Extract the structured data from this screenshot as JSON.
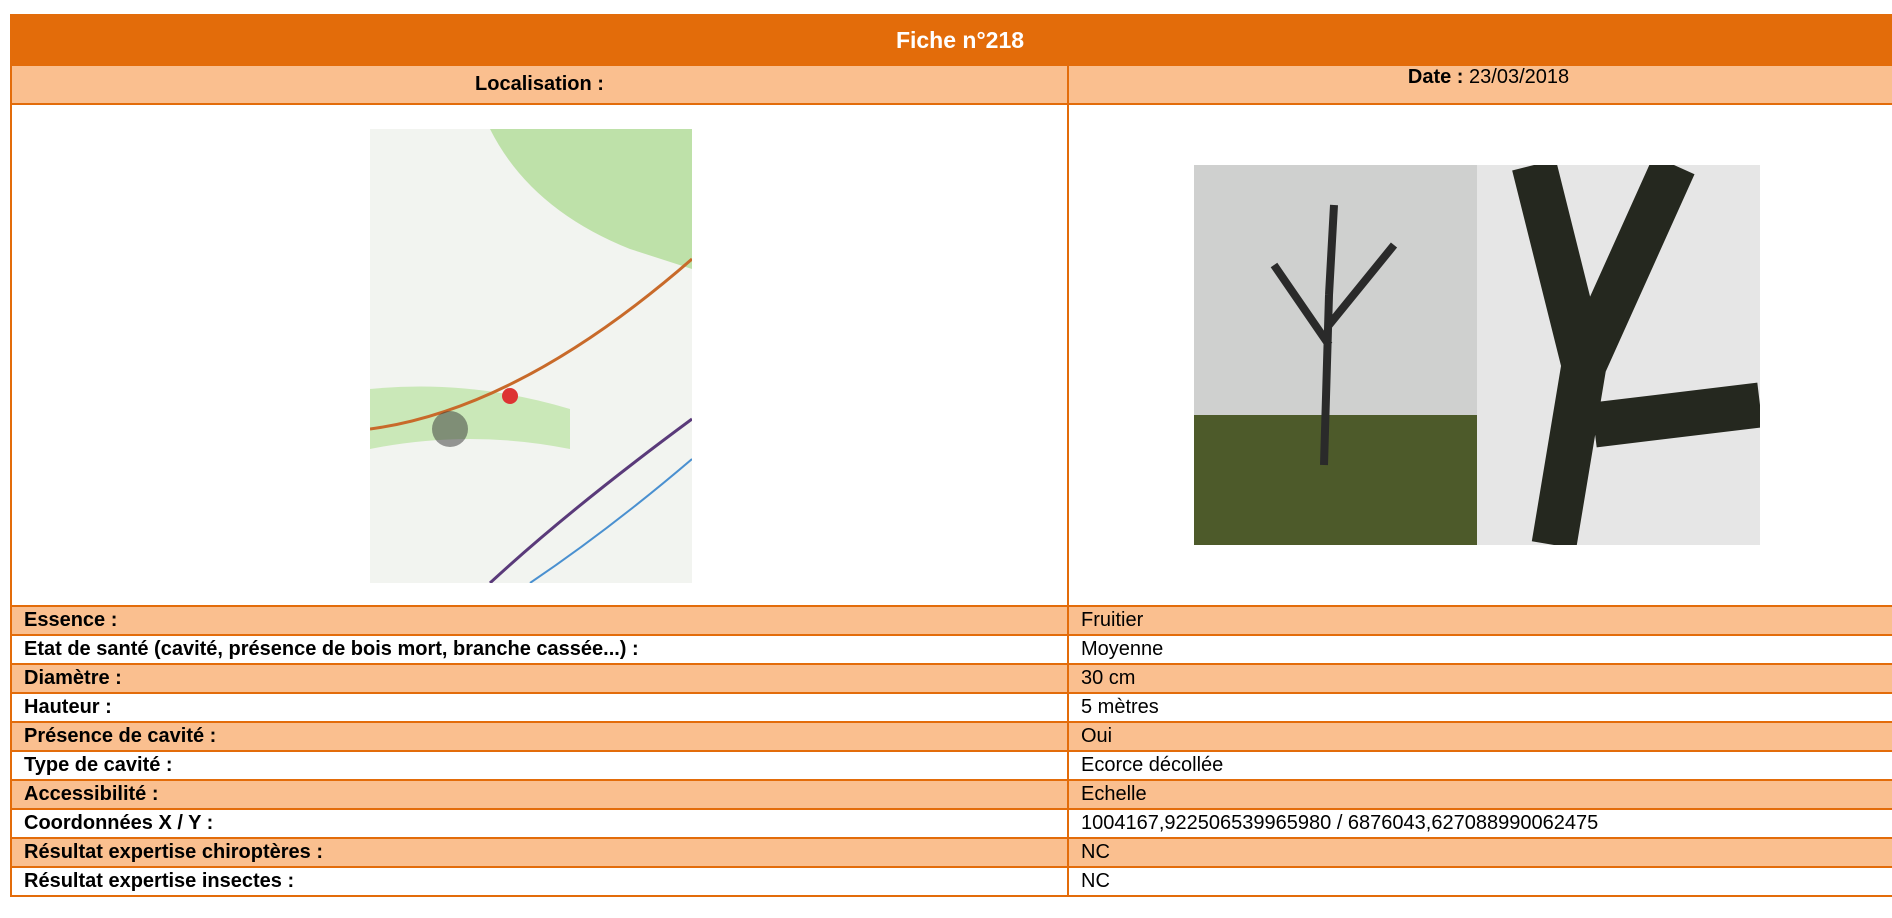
{
  "header": {
    "title": "Fiche n°218",
    "location_label": "Localisation :",
    "date_label": "Date :",
    "date_value": "23/03/2018"
  },
  "table": {
    "rows": [
      [
        "Essence :",
        "Fruitier"
      ],
      [
        "Etat de santé (cavité, présence de bois mort, branche cassée...) :",
        "Moyenne"
      ],
      [
        "Diamètre :",
        "30 cm"
      ],
      [
        "Hauteur :",
        "5 mètres"
      ],
      [
        "Présence de cavité :",
        "Oui"
      ],
      [
        "Type de cavité :",
        "Ecorce décollée"
      ],
      [
        "Accessibilité :",
        "Echelle"
      ],
      [
        "Coordonnées X / Y :",
        "1004167,922506539965980 / 6876043,627088990062475"
      ],
      [
        "Résultat expertise chiroptères :",
        "NC"
      ],
      [
        "Résultat expertise insectes :",
        "NC"
      ]
    ]
  }
}
